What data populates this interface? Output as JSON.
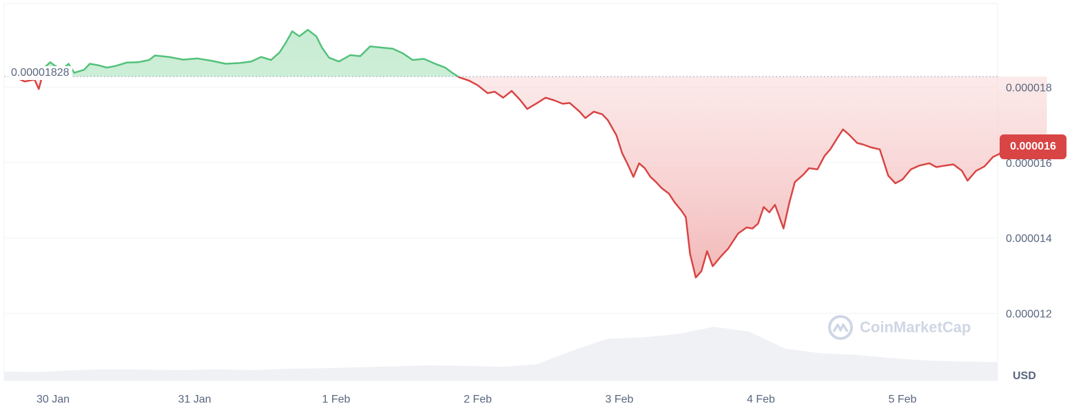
{
  "chart_data": {
    "type": "area",
    "x_labels": [
      "30 Jan",
      "31 Jan",
      "1 Feb",
      "2 Feb",
      "3 Feb",
      "4 Feb",
      "5 Feb"
    ],
    "y_ticks": [
      "0.000018",
      "0.000016",
      "0.000014",
      "0.000012"
    ],
    "y_tick_values": [
      1.8e-05,
      1.6e-05,
      1.4e-05,
      1.2e-05
    ],
    "ylim": [
      1e-05,
      2e-05
    ],
    "reference_value": 1.828e-05,
    "reference_label": "0.00001828",
    "current_price_label": "0.000016",
    "current_value": 1.644e-05,
    "currency": "USD",
    "x_range_days": [
      -0.3,
      6.65
    ],
    "price_points": [
      [
        -0.3,
        1.828e-05
      ],
      [
        -0.22,
        1.815e-05
      ],
      [
        -0.15,
        1.82e-05
      ],
      [
        -0.12,
        1.795e-05
      ],
      [
        -0.08,
        1.852e-05
      ],
      [
        -0.04,
        1.866e-05
      ],
      [
        0.0,
        1.855e-05
      ],
      [
        0.05,
        1.848e-05
      ],
      [
        0.09,
        1.862e-05
      ],
      [
        0.13,
        1.838e-05
      ],
      [
        0.2,
        1.846e-05
      ],
      [
        0.24,
        1.862e-05
      ],
      [
        0.3,
        1.858e-05
      ],
      [
        0.36,
        1.852e-05
      ],
      [
        0.42,
        1.856e-05
      ],
      [
        0.5,
        1.865e-05
      ],
      [
        0.58,
        1.866e-05
      ],
      [
        0.66,
        1.872e-05
      ],
      [
        0.7,
        1.884e-05
      ],
      [
        0.8,
        1.88e-05
      ],
      [
        0.9,
        1.873e-05
      ],
      [
        1.0,
        1.876e-05
      ],
      [
        1.1,
        1.87e-05
      ],
      [
        1.2,
        1.862e-05
      ],
      [
        1.3,
        1.864e-05
      ],
      [
        1.38,
        1.868e-05
      ],
      [
        1.45,
        1.88e-05
      ],
      [
        1.52,
        1.872e-05
      ],
      [
        1.58,
        1.892e-05
      ],
      [
        1.62,
        1.915e-05
      ],
      [
        1.67,
        1.948e-05
      ],
      [
        1.72,
        1.935e-05
      ],
      [
        1.78,
        1.952e-05
      ],
      [
        1.84,
        1.935e-05
      ],
      [
        1.88,
        1.905e-05
      ],
      [
        1.93,
        1.878e-05
      ],
      [
        2.0,
        1.868e-05
      ],
      [
        2.08,
        1.885e-05
      ],
      [
        2.15,
        1.882e-05
      ],
      [
        2.22,
        1.908e-05
      ],
      [
        2.3,
        1.905e-05
      ],
      [
        2.38,
        1.902e-05
      ],
      [
        2.45,
        1.89e-05
      ],
      [
        2.52,
        1.872e-05
      ],
      [
        2.6,
        1.875e-05
      ],
      [
        2.68,
        1.862e-05
      ],
      [
        2.75,
        1.852e-05
      ],
      [
        2.8,
        1.838e-05
      ],
      [
        2.85,
        1.826e-05
      ],
      [
        2.92,
        1.817e-05
      ],
      [
        2.98,
        1.805e-05
      ],
      [
        3.05,
        1.784e-05
      ],
      [
        3.1,
        1.788e-05
      ],
      [
        3.16,
        1.772e-05
      ],
      [
        3.22,
        1.79e-05
      ],
      [
        3.28,
        1.766e-05
      ],
      [
        3.33,
        1.742e-05
      ],
      [
        3.4,
        1.758e-05
      ],
      [
        3.46,
        1.772e-05
      ],
      [
        3.52,
        1.765e-05
      ],
      [
        3.58,
        1.756e-05
      ],
      [
        3.63,
        1.758e-05
      ],
      [
        3.7,
        1.735e-05
      ],
      [
        3.74,
        1.718e-05
      ],
      [
        3.8,
        1.735e-05
      ],
      [
        3.86,
        1.728e-05
      ],
      [
        3.9,
        1.712e-05
      ],
      [
        3.96,
        1.672e-05
      ],
      [
        4.0,
        1.625e-05
      ],
      [
        4.04,
        1.595e-05
      ],
      [
        4.08,
        1.562e-05
      ],
      [
        4.12,
        1.598e-05
      ],
      [
        4.16,
        1.585e-05
      ],
      [
        4.2,
        1.562e-05
      ],
      [
        4.24,
        1.548e-05
      ],
      [
        4.28,
        1.532e-05
      ],
      [
        4.33,
        1.518e-05
      ],
      [
        4.37,
        1.495e-05
      ],
      [
        4.42,
        1.472e-05
      ],
      [
        4.45,
        1.455e-05
      ],
      [
        4.48,
        1.358e-05
      ],
      [
        4.52,
        1.295e-05
      ],
      [
        4.56,
        1.312e-05
      ],
      [
        4.6,
        1.365e-05
      ],
      [
        4.64,
        1.325e-05
      ],
      [
        4.7,
        1.352e-05
      ],
      [
        4.75,
        1.372e-05
      ],
      [
        4.82,
        1.412e-05
      ],
      [
        4.88,
        1.428e-05
      ],
      [
        4.92,
        1.425e-05
      ],
      [
        4.96,
        1.438e-05
      ],
      [
        5.0,
        1.482e-05
      ],
      [
        5.04,
        1.468e-05
      ],
      [
        5.08,
        1.488e-05
      ],
      [
        5.14,
        1.425e-05
      ],
      [
        5.18,
        1.492e-05
      ],
      [
        5.22,
        1.548e-05
      ],
      [
        5.28,
        1.568e-05
      ],
      [
        5.32,
        1.585e-05
      ],
      [
        5.38,
        1.582e-05
      ],
      [
        5.43,
        1.618e-05
      ],
      [
        5.47,
        1.635e-05
      ],
      [
        5.52,
        1.665e-05
      ],
      [
        5.56,
        1.688e-05
      ],
      [
        5.6,
        1.675e-05
      ],
      [
        5.66,
        1.652e-05
      ],
      [
        5.7,
        1.648e-05
      ],
      [
        5.76,
        1.64e-05
      ],
      [
        5.82,
        1.635e-05
      ],
      [
        5.88,
        1.565e-05
      ],
      [
        5.93,
        1.545e-05
      ],
      [
        5.98,
        1.555e-05
      ],
      [
        6.04,
        1.582e-05
      ],
      [
        6.1,
        1.592e-05
      ],
      [
        6.17,
        1.598e-05
      ],
      [
        6.22,
        1.588e-05
      ],
      [
        6.28,
        1.592e-05
      ],
      [
        6.34,
        1.595e-05
      ],
      [
        6.4,
        1.578e-05
      ],
      [
        6.44,
        1.552e-05
      ],
      [
        6.5,
        1.578e-05
      ],
      [
        6.56,
        1.59e-05
      ],
      [
        6.62,
        1.615e-05
      ],
      [
        6.66,
        1.622e-05
      ],
      [
        6.72,
        1.638e-05
      ],
      [
        6.78,
        1.632e-05
      ],
      [
        6.84,
        1.628e-05
      ],
      [
        6.9,
        1.64e-05
      ],
      [
        6.96,
        1.644e-05
      ],
      [
        7.0,
        1.644e-05
      ]
    ],
    "volume_relative": [
      0.07,
      0.06,
      0.1,
      0.12,
      0.11,
      0.1,
      0.12,
      0.1,
      0.13,
      0.14,
      0.16,
      0.18,
      0.2,
      0.19,
      0.17,
      0.22,
      0.5,
      0.75,
      0.78,
      0.85,
      1.0,
      0.9,
      0.55,
      0.45,
      0.42,
      0.35,
      0.3,
      0.28,
      0.27
    ],
    "up_color": "#52c17a",
    "down_color": "#d94444",
    "area_up_fill": "#d4f0dc",
    "area_down_fill": "#fbe3e3",
    "volume_color": "#eff1f5",
    "grid": true,
    "legend": "none"
  },
  "watermark": {
    "brand": "CoinMarketCap"
  }
}
